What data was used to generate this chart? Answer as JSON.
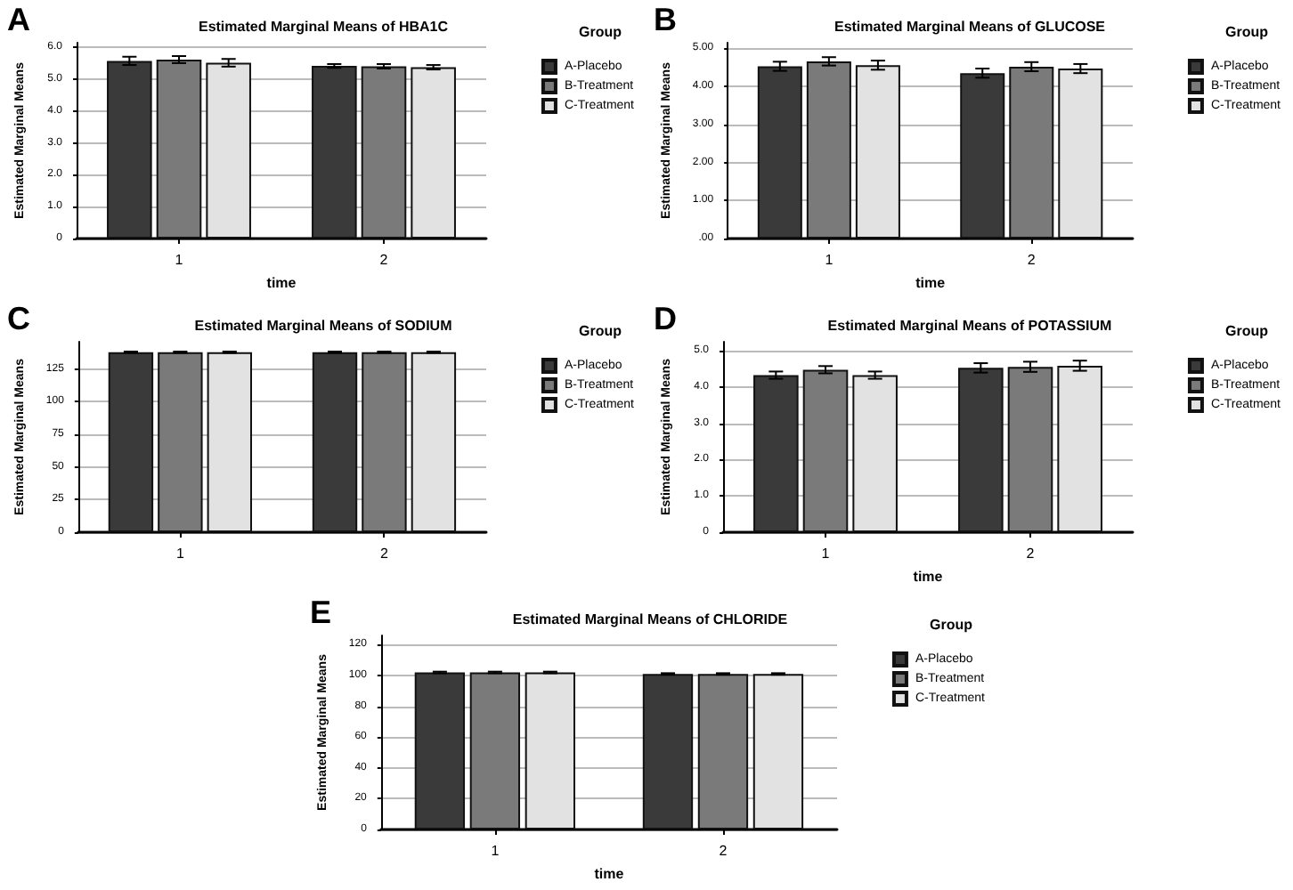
{
  "chart_data": [
    {
      "type": "bar",
      "title": "Estimated Marginal Means of HBA1C",
      "annotations": [
        "A"
      ],
      "xlabel": "time",
      "ylabel": "Estimated Marginal Means",
      "legend_title": "Group",
      "legend": "right",
      "grid": "y",
      "categories": [
        "1",
        "2"
      ],
      "ylim": [
        0,
        6.15
      ],
      "yticks": [
        0,
        {
          "value": 1,
          "label": "1.0"
        },
        {
          "value": 2,
          "label": "2.0"
        },
        {
          "value": 3,
          "label": "3.0"
        },
        {
          "value": 4,
          "label": "4.0"
        },
        {
          "value": 5,
          "label": "5.0"
        },
        {
          "value": 6,
          "label": "6.0"
        }
      ],
      "series": [
        {
          "name": "A-Placebo",
          "color": "#3a3a3a",
          "values": [
            5.58,
            5.42
          ],
          "errors": [
            0.13,
            0.06
          ]
        },
        {
          "name": "B-Treatment",
          "color": "#7a7a7a",
          "values": [
            5.62,
            5.41
          ],
          "errors": [
            0.11,
            0.07
          ]
        },
        {
          "name": "C-Treatment",
          "color": "#e2e2e2",
          "values": [
            5.52,
            5.38
          ],
          "errors": [
            0.12,
            0.07
          ]
        }
      ]
    },
    {
      "type": "bar",
      "title": "Estimated Marginal Means of GLUCOSE",
      "annotations": [
        "B"
      ],
      "xlabel": "time",
      "ylabel": "Estimated Marginal Means",
      "legend_title": "Group",
      "legend": "right",
      "grid": "y",
      "categories": [
        "1",
        "2"
      ],
      "ylim": [
        0,
        5.15
      ],
      "yticks": [
        {
          "value": 0,
          "label": ".00"
        },
        {
          "value": 1,
          "label": "1.00"
        },
        {
          "value": 2,
          "label": "2.00"
        },
        {
          "value": 3,
          "label": "3.00"
        },
        {
          "value": 4,
          "label": "4.00"
        },
        {
          "value": 5,
          "label": "5.00"
        }
      ],
      "series": [
        {
          "name": "A-Placebo",
          "color": "#3a3a3a",
          "values": [
            4.53,
            4.35
          ],
          "errors": [
            0.12,
            0.12
          ]
        },
        {
          "name": "B-Treatment",
          "color": "#7a7a7a",
          "values": [
            4.66,
            4.52
          ],
          "errors": [
            0.11,
            0.12
          ]
        },
        {
          "name": "C-Treatment",
          "color": "#e2e2e2",
          "values": [
            4.56,
            4.47
          ],
          "errors": [
            0.12,
            0.12
          ]
        }
      ]
    },
    {
      "type": "bar",
      "title": "Estimated Marginal Means of SODIUM",
      "annotations": [
        "C"
      ],
      "ylabel": "Estimated Marginal Means",
      "legend_title": "Group",
      "legend": "right",
      "grid": "y",
      "categories": [
        "1",
        "2"
      ],
      "ylim": [
        0,
        146
      ],
      "yticks": [
        0,
        25,
        50,
        75,
        100,
        125
      ],
      "series": [
        {
          "name": "A-Placebo",
          "color": "#3a3a3a",
          "values": [
            138,
            138
          ],
          "errors": [
            0.5,
            0.5
          ]
        },
        {
          "name": "B-Treatment",
          "color": "#7a7a7a",
          "values": [
            138,
            138
          ],
          "errors": [
            0.5,
            0.5
          ]
        },
        {
          "name": "C-Treatment",
          "color": "#e2e2e2",
          "values": [
            138,
            138
          ],
          "errors": [
            0.5,
            0.5
          ]
        }
      ]
    },
    {
      "type": "bar",
      "title": "Estimated Marginal Means of POTASSIUM",
      "annotations": [
        "D"
      ],
      "xlabel": "time",
      "ylabel": "Estimated Marginal Means",
      "legend_title": "Group",
      "legend": "right",
      "grid": "y",
      "categories": [
        "1",
        "2"
      ],
      "ylim": [
        0,
        5.25
      ],
      "yticks": [
        0,
        {
          "value": 1,
          "label": "1.0"
        },
        {
          "value": 2,
          "label": "2.0"
        },
        {
          "value": 3,
          "label": "3.0"
        },
        {
          "value": 4,
          "label": "4.0"
        },
        {
          "value": 5,
          "label": "5.0"
        }
      ],
      "series": [
        {
          "name": "A-Placebo",
          "color": "#3a3a3a",
          "values": [
            4.33,
            4.53
          ],
          "errors": [
            0.1,
            0.13
          ]
        },
        {
          "name": "B-Treatment",
          "color": "#7a7a7a",
          "values": [
            4.48,
            4.56
          ],
          "errors": [
            0.1,
            0.14
          ]
        },
        {
          "name": "C-Treatment",
          "color": "#e2e2e2",
          "values": [
            4.33,
            4.59
          ],
          "errors": [
            0.1,
            0.14
          ]
        }
      ]
    },
    {
      "type": "bar",
      "title": "Estimated Marginal Means of CHLORIDE",
      "annotations": [
        "E"
      ],
      "xlabel": "time",
      "ylabel": "Estimated Marginal Means",
      "legend_title": "Group",
      "legend": "right",
      "grid": "y",
      "categories": [
        "1",
        "2"
      ],
      "ylim": [
        0,
        126
      ],
      "yticks": [
        0,
        20,
        40,
        60,
        80,
        100,
        120
      ],
      "series": [
        {
          "name": "A-Placebo",
          "color": "#3a3a3a",
          "values": [
            102,
            101
          ],
          "errors": [
            0.5,
            0.5
          ]
        },
        {
          "name": "B-Treatment",
          "color": "#7a7a7a",
          "values": [
            102,
            101
          ],
          "errors": [
            0.5,
            0.5
          ]
        },
        {
          "name": "C-Treatment",
          "color": "#e2e2e2",
          "values": [
            102,
            101
          ],
          "errors": [
            0.5,
            0.5
          ]
        }
      ]
    }
  ]
}
